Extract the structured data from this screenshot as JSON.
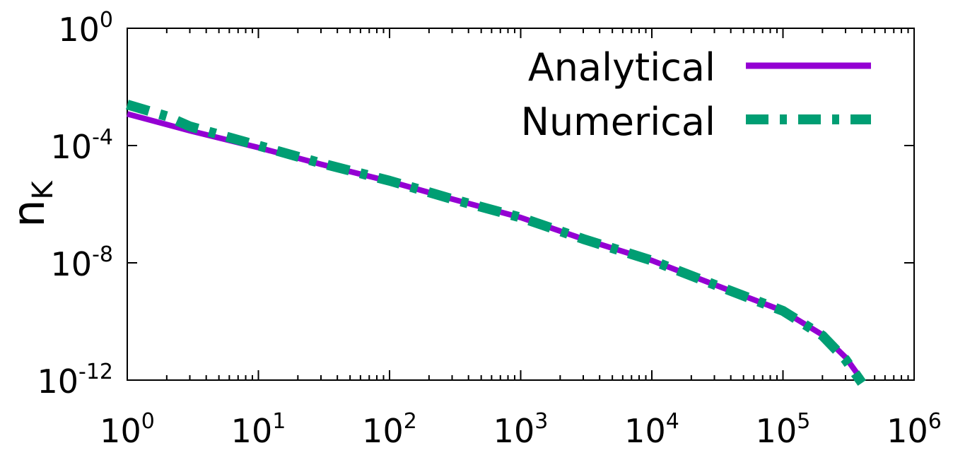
{
  "colors": {
    "analytical": "#9400d3",
    "numerical": "#009e73",
    "axis": "#000000",
    "background": "#ffffff"
  },
  "chart_data": {
    "type": "line",
    "title": "",
    "xlabel": "",
    "ylabel": {
      "base": "n",
      "subscript": "K"
    },
    "xscale": "log",
    "yscale": "log",
    "xlim": [
      1,
      1000000
    ],
    "ylim": [
      1e-12,
      1
    ],
    "grid": false,
    "legend_position": "top-right",
    "x_ticks": [
      {
        "base": "10",
        "exp": "0",
        "value": 1
      },
      {
        "base": "10",
        "exp": "1",
        "value": 10
      },
      {
        "base": "10",
        "exp": "2",
        "value": 100
      },
      {
        "base": "10",
        "exp": "3",
        "value": 1000
      },
      {
        "base": "10",
        "exp": "4",
        "value": 10000
      },
      {
        "base": "10",
        "exp": "5",
        "value": 100000
      },
      {
        "base": "10",
        "exp": "6",
        "value": 1000000
      }
    ],
    "y_ticks": [
      {
        "base": "10",
        "exp": "0",
        "value": 1
      },
      {
        "base": "10",
        "exp": "-4",
        "value": 0.0001
      },
      {
        "base": "10",
        "exp": "-8",
        "value": 1e-08
      },
      {
        "base": "10",
        "exp": "-12",
        "value": 1e-12
      }
    ],
    "series": [
      {
        "name": "Analytical",
        "style": "solid",
        "x": [
          1,
          3,
          10,
          30,
          100,
          300,
          1000,
          3000,
          10000,
          30000,
          100000,
          200000,
          300000,
          400000
        ],
        "y": [
          0.0012,
          0.00032,
          8.5e-05,
          2.3e-05,
          6e-06,
          1.5e-06,
          3.5e-07,
          6.5e-08,
          1.2e-08,
          1.8e-09,
          2.3e-10,
          3.5e-11,
          6e-12,
          1e-12
        ]
      },
      {
        "name": "Numerical",
        "style": "dash-dot",
        "x": [
          1,
          2,
          3,
          10,
          30,
          100,
          300,
          1000,
          3000,
          10000,
          30000,
          100000,
          200000,
          300000,
          400000
        ],
        "y": [
          0.0025,
          0.001,
          0.00045,
          0.0001,
          2.5e-05,
          6.3e-06,
          1.5e-06,
          3.5e-07,
          6.5e-08,
          1.2e-08,
          1.8e-09,
          2.3e-10,
          3.3e-11,
          5e-12,
          7e-13
        ]
      }
    ]
  }
}
